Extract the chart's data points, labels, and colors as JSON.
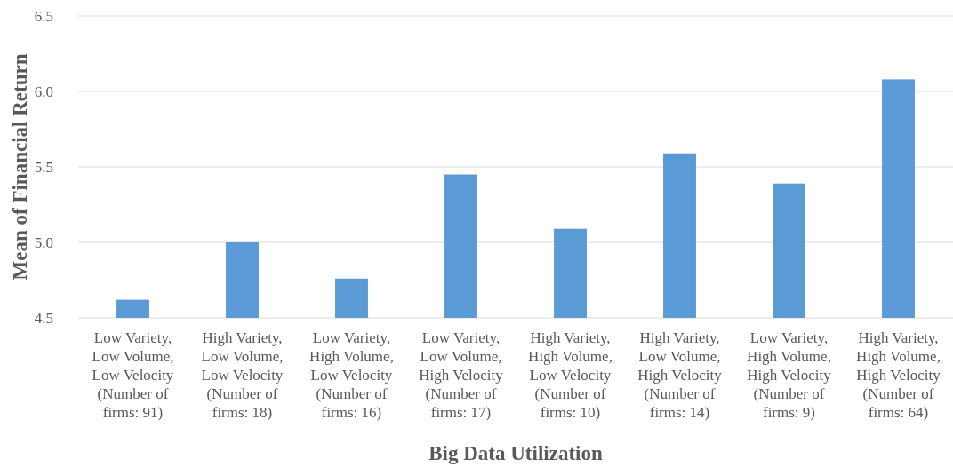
{
  "chart_data": {
    "type": "bar",
    "xlabel": "Big Data Utilization",
    "ylabel": "Mean of Financial Return",
    "categories": [
      "Low Variety,\nLow Volume,\nLow Velocity\n(Number of\nfirms: 91)",
      "High Variety,\nLow Volume,\nLow Velocity\n(Number of\nfirms: 18)",
      "Low Variety,\nHigh Volume,\nLow Velocity\n(Number of\nfirms: 16)",
      "Low Variety,\nLow Volume,\nHigh Velocity\n(Number of\nfirms: 17)",
      "High Variety,\nHigh Volume,\nLow Velocity\n(Number of\nfirms: 10)",
      "High Variety,\nLow Volume,\nHigh Velocity\n(Number of\nfirms: 14)",
      "Low Variety,\nHigh Volume,\nHigh Velocity\n(Number of\nfirms: 9)",
      "High Variety,\nHigh Volume,\nHigh Velocity\n(Number of\nfirms: 64)"
    ],
    "values": [
      4.62,
      5.0,
      4.76,
      5.45,
      5.09,
      5.59,
      5.39,
      6.08
    ],
    "color": "#5b9bd5",
    "ylim": [
      4.5,
      6.5
    ],
    "yticks": [
      {
        "value": 4.5,
        "label": "4.5"
      },
      {
        "value": 5,
        "label": "5.0"
      },
      {
        "value": 5.5,
        "label": "5.5"
      },
      {
        "value": 6,
        "label": "6.0"
      },
      {
        "value": 6.5,
        "label": "6.5"
      }
    ],
    "grid": "y"
  }
}
